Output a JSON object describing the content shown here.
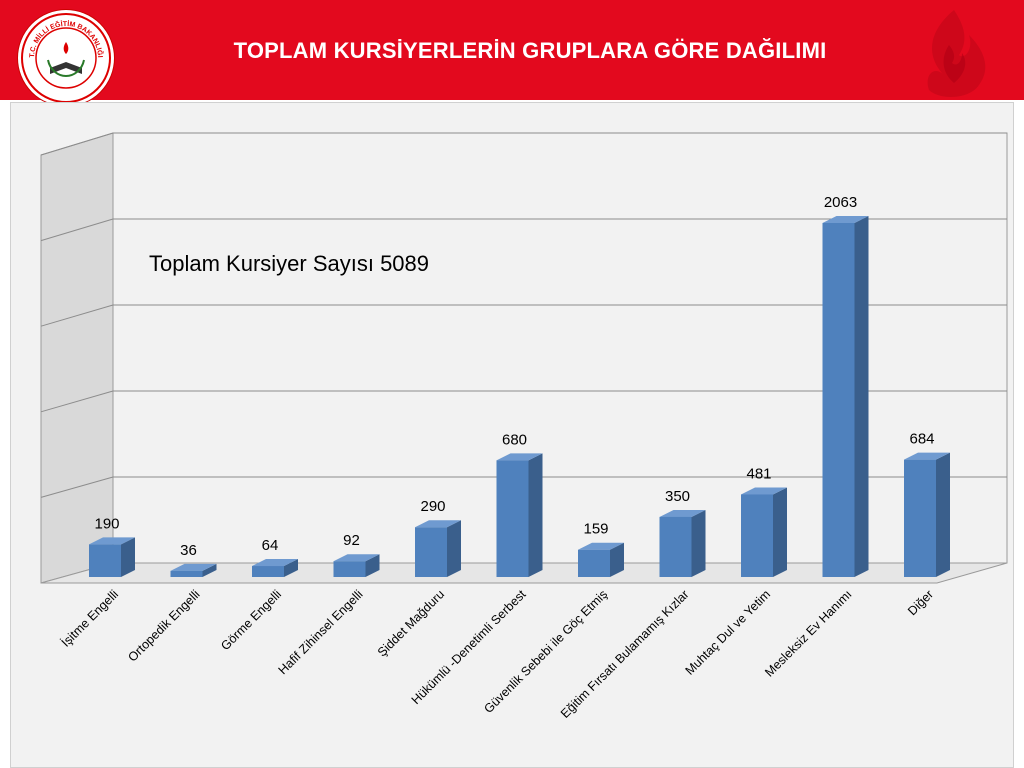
{
  "header": {
    "title": "TOPLAM KURSİYERLERİN GRUPLARA GÖRE DAĞILIMI",
    "logo_text": "T.C. MİLLİ EĞİTİM BAKANLIĞI"
  },
  "colors": {
    "header_red": "#e3091e",
    "bar_front": "#4f81bd",
    "bar_side": "#3a5f8c",
    "bar_top": "#6f9ad0"
  },
  "chart_data": {
    "type": "bar",
    "annotation": "Toplam  Kursiyer Sayısı 5089",
    "categories": [
      "İşitme Engelli",
      "Ortopedik Engelli",
      "Görme Engelli",
      "Hafif Zihinsel Engelli",
      "Şiddet Mağduru",
      "Hükümlü -Denetimli Serbest",
      "Güvenlik Sebebi ile  Göç Etmiş",
      "Eğitim  Fırsatı Bulamamış Kızlar",
      "Muhtaç Dul ve Yetim",
      "Mesleksiz  Ev Hanımı",
      "Diğer"
    ],
    "values": [
      190,
      36,
      64,
      92,
      290,
      680,
      159,
      350,
      481,
      2063,
      684
    ],
    "ylim": [
      0,
      2500
    ],
    "grid": true,
    "y_tick_labels_shown": false
  }
}
